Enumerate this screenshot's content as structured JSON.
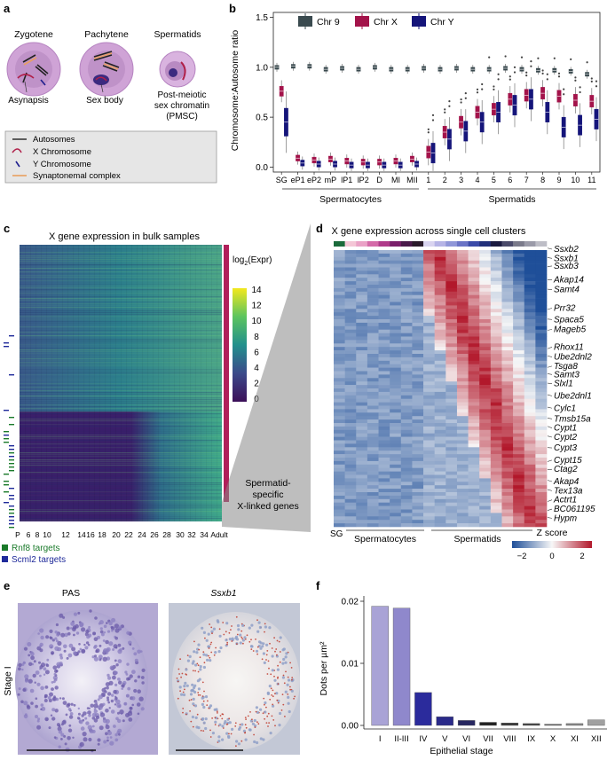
{
  "panels": {
    "a": {
      "letter": "a",
      "cells": [
        "Zygotene",
        "Pachytene",
        "Spermatids"
      ],
      "notes": [
        "Asynapsis",
        "Sex body",
        "Post-meiotic",
        "sex chromatin",
        "(PMSC)"
      ],
      "legend": [
        "Autosomes",
        "X Chromosome",
        "Y Chromosome",
        "Synaptonemal complex"
      ],
      "colors": {
        "autosome": "#222222",
        "x": "#b0204a",
        "y": "#1f1f8f",
        "sc": "#e8a060",
        "cell": "#cfa3d6",
        "nucleus": "#b88ac2"
      }
    },
    "b": {
      "letter": "b",
      "group_labels": [
        "Spermatocytes",
        "Spermatids"
      ]
    },
    "c": {
      "letter": "c",
      "title": "X gene expression in bulk samples",
      "colorbar_label_main": "log",
      "colorbar_label_sub": "2",
      "colorbar_label_tail": "(Expr)",
      "colorbar_ticks": [
        "14",
        "12",
        "10",
        "8",
        "6",
        "4",
        "2",
        "0"
      ],
      "x_ticks": [
        "P",
        "6",
        "8",
        "10",
        "12",
        "14",
        "16",
        "18",
        "20",
        "22",
        "24",
        "26",
        "28",
        "30",
        "32",
        "34",
        "Adult"
      ],
      "annotation": [
        "Spermatid-",
        "specific",
        "X-linked genes"
      ],
      "target_legend": [
        "Rnf8 targets",
        "Scml2 targets"
      ],
      "target_colors": [
        "#1a7a2a",
        "#1f2a9a"
      ]
    },
    "d": {
      "letter": "d",
      "title": "X gene expression across single cell clusters",
      "genes": [
        "Ssxb2",
        "Ssxb1",
        "Ssxb3",
        "Akap14",
        "Samt4",
        "Prr32",
        "Spaca5",
        "Mageb5",
        "Rhox11",
        "Ube2dnl2",
        "Tsga8",
        "Samt3",
        "Slxl1",
        "Ube2dnl1",
        "Cylc1",
        "Tmsb15a",
        "Cypt1",
        "Cypt2",
        "Cypt3",
        "Cypt15",
        "Ctag2",
        "Akap4",
        "Tex13a",
        "Actrt1",
        "BC061195",
        "Hypm"
      ],
      "x_labels": [
        "SG",
        "Spermatocytes",
        "Spermatids"
      ],
      "zscore_title": "Z score",
      "zscore_ticks": [
        "−2",
        "0",
        "2"
      ]
    },
    "e": {
      "letter": "e",
      "titles": [
        "PAS",
        "Ssxb1"
      ],
      "row_label": "Stage I"
    },
    "f": {
      "letter": "f"
    }
  },
  "chart_data": [
    {
      "type": "box",
      "title": "",
      "ylabel": "Chromosome:Autosome ratio",
      "ylim": [
        -0.05,
        1.55
      ],
      "yticks": [
        0.0,
        0.5,
        1.0,
        1.5
      ],
      "ytick_labels": [
        "0.0",
        "0.5",
        "1.0",
        "1.5"
      ],
      "categories": [
        "SG",
        "eP1",
        "eP2",
        "mP",
        "lP1",
        "lP2",
        "D",
        "MI",
        "MII",
        "1",
        "2",
        "3",
        "4",
        "5",
        "6",
        "7",
        "8",
        "9",
        "10",
        "11"
      ],
      "legend_position": "top",
      "series": [
        {
          "name": "Chr 9",
          "color": "#3a4a4f",
          "medians": [
            1.0,
            1.01,
            1.01,
            0.98,
            0.99,
            0.98,
            1.0,
            0.98,
            0.98,
            0.99,
            0.98,
            0.99,
            0.98,
            0.98,
            0.99,
            0.98,
            0.97,
            0.97,
            0.96,
            0.93
          ]
        },
        {
          "name": "Chr X",
          "color": "#a3134a",
          "medians": [
            0.76,
            0.09,
            0.07,
            0.08,
            0.06,
            0.05,
            0.05,
            0.06,
            0.08,
            0.15,
            0.35,
            0.45,
            0.55,
            0.58,
            0.68,
            0.72,
            0.74,
            0.71,
            0.67,
            0.66
          ]
        },
        {
          "name": "Chr Y",
          "color": "#15157a",
          "medians": [
            0.45,
            0.04,
            0.03,
            0.03,
            0.02,
            0.02,
            0.02,
            0.02,
            0.03,
            0.14,
            0.28,
            0.36,
            0.45,
            0.55,
            0.62,
            0.68,
            0.55,
            0.4,
            0.42,
            0.48
          ]
        }
      ]
    },
    {
      "type": "bar",
      "title": "",
      "xlabel": "Epithelial stage",
      "ylabel": "Dots per µm²",
      "ylim": [
        0,
        0.02
      ],
      "yticks": [
        0.0,
        0.01,
        0.02
      ],
      "ytick_labels": [
        "0.00",
        "0.01",
        "0.02"
      ],
      "categories": [
        "I",
        "II-III",
        "IV",
        "V",
        "VI",
        "VII",
        "VIII",
        "IX",
        "X",
        "XI",
        "XII"
      ],
      "values": [
        0.0192,
        0.0189,
        0.0053,
        0.0014,
        0.0008,
        0.0005,
        0.0004,
        0.0003,
        0.0002,
        0.0003,
        0.0009
      ],
      "colors": [
        "#a9a3d6",
        "#8f88cc",
        "#2b2b9c",
        "#2a2a8a",
        "#262660",
        "#222222",
        "#3a3a3a",
        "#444444",
        "#666666",
        "#888888",
        "#a0a0a0"
      ]
    }
  ]
}
